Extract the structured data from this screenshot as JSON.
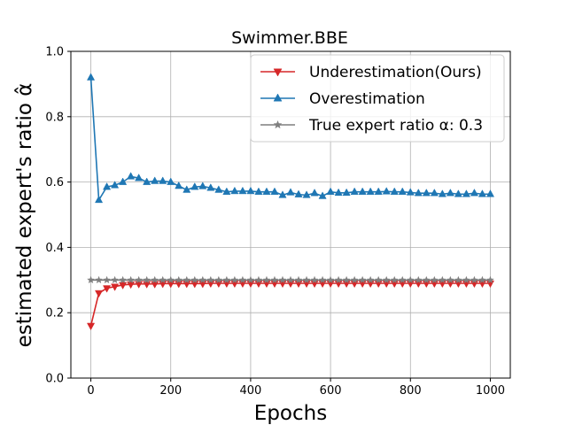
{
  "chart_data": {
    "type": "line",
    "title": "Swimmer.BBE",
    "xlabel": "Epochs",
    "ylabel": "estimated expert's ratio α̂",
    "xlim": [
      -50,
      1050
    ],
    "ylim": [
      0.0,
      1.0
    ],
    "xticks": [
      0,
      200,
      400,
      600,
      800,
      1000
    ],
    "xtick_labels": [
      "0",
      "200",
      "400",
      "600",
      "800",
      "1000"
    ],
    "yticks": [
      0.0,
      0.2,
      0.4,
      0.6,
      0.8,
      1.0
    ],
    "ytick_labels": [
      "0.0",
      "0.2",
      "0.4",
      "0.6",
      "0.8",
      "1.0"
    ],
    "grid": true,
    "legend_position": "top-right",
    "x": [
      0,
      20,
      40,
      60,
      80,
      100,
      120,
      140,
      160,
      180,
      200,
      220,
      240,
      260,
      280,
      300,
      320,
      340,
      360,
      380,
      400,
      420,
      440,
      460,
      480,
      500,
      520,
      540,
      560,
      580,
      600,
      620,
      640,
      660,
      680,
      700,
      720,
      740,
      760,
      780,
      800,
      820,
      840,
      860,
      880,
      900,
      920,
      940,
      960,
      980,
      1000
    ],
    "series": [
      {
        "name": "Underestimation(Ours)",
        "color": "#d62728",
        "marker": "triangle-down",
        "values": [
          0.16,
          0.26,
          0.275,
          0.28,
          0.285,
          0.287,
          0.288,
          0.288,
          0.288,
          0.289,
          0.289,
          0.289,
          0.289,
          0.289,
          0.289,
          0.29,
          0.29,
          0.29,
          0.29,
          0.29,
          0.29,
          0.29,
          0.29,
          0.29,
          0.29,
          0.29,
          0.29,
          0.29,
          0.29,
          0.29,
          0.29,
          0.29,
          0.29,
          0.29,
          0.29,
          0.29,
          0.29,
          0.29,
          0.29,
          0.29,
          0.29,
          0.29,
          0.29,
          0.29,
          0.29,
          0.29,
          0.29,
          0.29,
          0.29,
          0.29,
          0.29
        ]
      },
      {
        "name": "Overestimation",
        "color": "#1f77b4",
        "marker": "triangle-up",
        "values": [
          0.92,
          0.545,
          0.585,
          0.59,
          0.6,
          0.617,
          0.612,
          0.6,
          0.603,
          0.603,
          0.6,
          0.588,
          0.576,
          0.585,
          0.587,
          0.582,
          0.576,
          0.57,
          0.572,
          0.572,
          0.572,
          0.57,
          0.57,
          0.57,
          0.56,
          0.568,
          0.562,
          0.56,
          0.566,
          0.557,
          0.57,
          0.567,
          0.567,
          0.57,
          0.57,
          0.57,
          0.57,
          0.571,
          0.57,
          0.57,
          0.568,
          0.566,
          0.566,
          0.566,
          0.563,
          0.566,
          0.563,
          0.563,
          0.566,
          0.563,
          0.563
        ]
      },
      {
        "name": "True expert ratio α: 0.3",
        "color": "#7f7f7f",
        "marker": "star",
        "values": [
          0.3,
          0.3,
          0.3,
          0.3,
          0.3,
          0.3,
          0.3,
          0.3,
          0.3,
          0.3,
          0.3,
          0.3,
          0.3,
          0.3,
          0.3,
          0.3,
          0.3,
          0.3,
          0.3,
          0.3,
          0.3,
          0.3,
          0.3,
          0.3,
          0.3,
          0.3,
          0.3,
          0.3,
          0.3,
          0.3,
          0.3,
          0.3,
          0.3,
          0.3,
          0.3,
          0.3,
          0.3,
          0.3,
          0.3,
          0.3,
          0.3,
          0.3,
          0.3,
          0.3,
          0.3,
          0.3,
          0.3,
          0.3,
          0.3,
          0.3,
          0.3
        ]
      }
    ]
  }
}
